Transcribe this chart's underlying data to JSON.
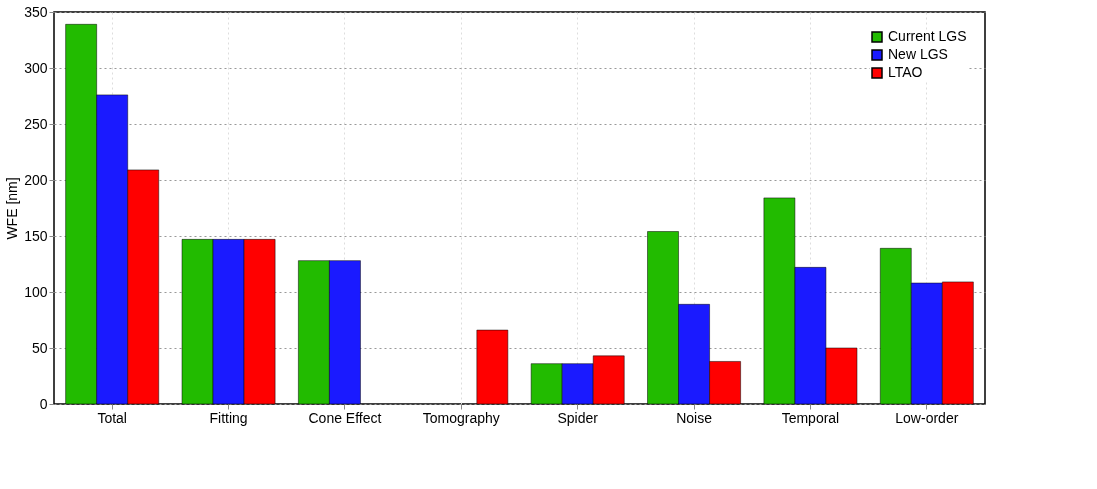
{
  "chart_data": {
    "type": "bar",
    "ylabel": "WFE [nm]",
    "categories": [
      "Total",
      "Fitting",
      "Cone Effect",
      "Tomography",
      "Spider",
      "Noise",
      "Temporal",
      "Low-order"
    ],
    "series": [
      {
        "name": "Current LGS",
        "color": "#22bb00",
        "values": [
          339,
          147,
          128,
          null,
          36,
          154,
          184,
          139
        ]
      },
      {
        "name": "New LGS",
        "color": "#1a1aff",
        "values": [
          276,
          147,
          128,
          null,
          36,
          89,
          122,
          108
        ]
      },
      {
        "name": "LTAO",
        "color": "#ff0000",
        "values": [
          209,
          147,
          null,
          66,
          43,
          38,
          50,
          109
        ]
      }
    ],
    "ylim": [
      0,
      350
    ],
    "yticks": [
      0,
      50,
      100,
      150,
      200,
      250,
      300,
      350
    ],
    "grid": true,
    "legend": "top right"
  }
}
